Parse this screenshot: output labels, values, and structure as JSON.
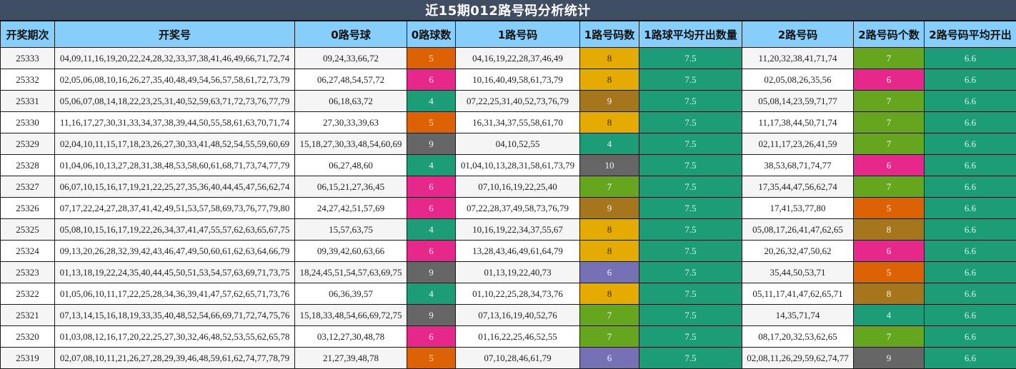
{
  "title": "近15期012路号码分析统计",
  "columns": [
    "开奖期次",
    "开奖号",
    "0路号球",
    "0路球数",
    "1路号码",
    "1路号码数",
    "1路球平均开出数量",
    "2路号码",
    "2路号码个数",
    "2路号码平均开出"
  ],
  "colors": {
    "title_bg": "#3f4e63",
    "header_bg": "#87cefa",
    "count_4": "#1c9c77",
    "count_5": "#dc6205",
    "count_6": "#e5288a",
    "count_6_purple": "#7670b5",
    "count_7": "#66a61f",
    "count_8_gold": "#e5ab02",
    "count_8_brown": "#a6761d",
    "count_9_gray": "#666666",
    "count_9_brown": "#a6761d",
    "count_10": "#666666",
    "avg": "#1c9c77"
  },
  "rows": [
    {
      "period": "25333",
      "numbers": "04,09,11,16,19,20,22,24,28,32,33,37,38,41,46,49,66,71,72,74",
      "r0": "09,24,33,66,72",
      "r0_count": "5",
      "r0_color": "#dc6205",
      "r1": "04,16,19,22,28,37,46,49",
      "r1_count": "8",
      "r1_color": "#e5ab02",
      "r1_dark": true,
      "r1_avg": "7.5",
      "r2": "11,20,32,38,41,71,74",
      "r2_count": "7",
      "r2_color": "#66a61f",
      "r2_avg": "6.6"
    },
    {
      "period": "25332",
      "numbers": "02,05,06,08,10,16,26,27,35,40,48,49,54,56,57,58,61,72,73,79",
      "r0": "06,27,48,54,57,72",
      "r0_count": "6",
      "r0_color": "#e5288a",
      "r1": "10,16,40,49,58,61,73,79",
      "r1_count": "8",
      "r1_color": "#e5ab02",
      "r1_dark": true,
      "r1_avg": "7.5",
      "r2": "02,05,08,26,35,56",
      "r2_count": "6",
      "r2_color": "#e5288a",
      "r2_avg": "6.6"
    },
    {
      "period": "25331",
      "numbers": "05,06,07,08,14,18,22,23,25,31,40,52,59,63,71,72,73,76,77,79",
      "r0": "06,18,63,72",
      "r0_count": "4",
      "r0_color": "#1c9c77",
      "r1": "07,22,25,31,40,52,73,76,79",
      "r1_count": "9",
      "r1_color": "#a6761d",
      "r1_dark": false,
      "r1_avg": "7.5",
      "r2": "05,08,14,23,59,71,77",
      "r2_count": "7",
      "r2_color": "#66a61f",
      "r2_avg": "6.6"
    },
    {
      "period": "25330",
      "numbers": "11,16,17,27,30,31,33,34,37,38,39,44,50,55,58,61,63,70,71,74",
      "r0": "27,30,33,39,63",
      "r0_count": "5",
      "r0_color": "#dc6205",
      "r1": "16,31,34,37,55,58,61,70",
      "r1_count": "8",
      "r1_color": "#e5ab02",
      "r1_dark": true,
      "r1_avg": "7.5",
      "r2": "11,17,38,44,50,71,74",
      "r2_count": "7",
      "r2_color": "#66a61f",
      "r2_avg": "6.6"
    },
    {
      "period": "25329",
      "numbers": "02,04,10,11,15,17,18,23,26,27,30,33,41,48,52,54,55,59,60,69",
      "r0": "15,18,27,30,33,48,54,60,69",
      "r0_count": "9",
      "r0_color": "#666666",
      "r1": "04,10,52,55",
      "r1_count": "4",
      "r1_color": "#1c9c77",
      "r1_dark": false,
      "r1_avg": "7.5",
      "r2": "02,11,17,23,26,41,59",
      "r2_count": "7",
      "r2_color": "#66a61f",
      "r2_avg": "6.6"
    },
    {
      "period": "25328",
      "numbers": "01,04,06,10,13,27,28,31,38,48,53,58,60,61,68,71,73,74,77,79",
      "r0": "06,27,48,60",
      "r0_count": "4",
      "r0_color": "#1c9c77",
      "r1": "01,04,10,13,28,31,58,61,73,79",
      "r1_count": "10",
      "r1_color": "#666666",
      "r1_dark": false,
      "r1_avg": "7.5",
      "r2": "38,53,68,71,74,77",
      "r2_count": "6",
      "r2_color": "#e5288a",
      "r2_avg": "6.6"
    },
    {
      "period": "25327",
      "numbers": "06,07,10,15,16,17,19,21,22,25,27,35,36,40,44,45,47,56,62,74",
      "r0": "06,15,21,27,36,45",
      "r0_count": "6",
      "r0_color": "#e5288a",
      "r1": "07,10,16,19,22,25,40",
      "r1_count": "7",
      "r1_color": "#66a61f",
      "r1_dark": false,
      "r1_avg": "7.5",
      "r2": "17,35,44,47,56,62,74",
      "r2_count": "7",
      "r2_color": "#66a61f",
      "r2_avg": "6.6"
    },
    {
      "period": "25326",
      "numbers": "07,17,22,24,27,28,37,41,42,49,51,53,57,58,69,73,76,77,79,80",
      "r0": "24,27,42,51,57,69",
      "r0_count": "6",
      "r0_color": "#e5288a",
      "r1": "07,22,28,37,49,58,73,76,79",
      "r1_count": "9",
      "r1_color": "#a6761d",
      "r1_dark": false,
      "r1_avg": "7.5",
      "r2": "17,41,53,77,80",
      "r2_count": "5",
      "r2_color": "#dc6205",
      "r2_avg": "6.6"
    },
    {
      "period": "25325",
      "numbers": "05,08,10,15,16,17,19,22,26,34,37,41,47,55,57,62,63,65,67,75",
      "r0": "15,57,63,75",
      "r0_count": "4",
      "r0_color": "#1c9c77",
      "r1": "10,16,19,22,34,37,55,67",
      "r1_count": "8",
      "r1_color": "#e5ab02",
      "r1_dark": true,
      "r1_avg": "7.5",
      "r2": "05,08,17,26,41,47,62,65",
      "r2_count": "8",
      "r2_color": "#a6761d",
      "r2_avg": "6.6"
    },
    {
      "period": "25324",
      "numbers": "09,13,20,26,28,32,39,42,43,46,47,49,50,60,61,62,63,64,66,79",
      "r0": "09,39,42,60,63,66",
      "r0_count": "6",
      "r0_color": "#e5288a",
      "r1": "13,28,43,46,49,61,64,79",
      "r1_count": "8",
      "r1_color": "#e5ab02",
      "r1_dark": true,
      "r1_avg": "7.5",
      "r2": "20,26,32,47,50,62",
      "r2_count": "6",
      "r2_color": "#e5288a",
      "r2_avg": "6.6"
    },
    {
      "period": "25323",
      "numbers": "01,13,18,19,22,24,35,40,44,45,50,51,53,54,57,63,69,71,73,75",
      "r0": "18,24,45,51,54,57,63,69,75",
      "r0_count": "9",
      "r0_color": "#666666",
      "r1": "01,13,19,22,40,73",
      "r1_count": "6",
      "r1_color": "#7670b5",
      "r1_dark": false,
      "r1_avg": "7.5",
      "r2": "35,44,50,53,71",
      "r2_count": "5",
      "r2_color": "#dc6205",
      "r2_avg": "6.6"
    },
    {
      "period": "25322",
      "numbers": "01,05,06,10,11,17,22,25,28,34,36,39,41,47,57,62,65,71,73,76",
      "r0": "06,36,39,57",
      "r0_count": "4",
      "r0_color": "#1c9c77",
      "r1": "01,10,22,25,28,34,73,76",
      "r1_count": "8",
      "r1_color": "#e5ab02",
      "r1_dark": true,
      "r1_avg": "7.5",
      "r2": "05,11,17,41,47,62,65,71",
      "r2_count": "8",
      "r2_color": "#a6761d",
      "r2_avg": "6.6"
    },
    {
      "period": "25321",
      "numbers": "07,13,14,15,16,18,19,33,35,40,48,52,54,66,69,71,72,74,75,76",
      "r0": "15,18,33,48,54,66,69,72,75",
      "r0_count": "9",
      "r0_color": "#666666",
      "r1": "07,13,16,19,40,52,76",
      "r1_count": "7",
      "r1_color": "#66a61f",
      "r1_dark": false,
      "r1_avg": "7.5",
      "r2": "14,35,71,74",
      "r2_count": "4",
      "r2_color": "#1c9c77",
      "r2_avg": "6.6"
    },
    {
      "period": "25320",
      "numbers": "01,03,08,12,16,17,20,22,25,27,30,32,46,48,52,53,55,62,65,78",
      "r0": "03,12,27,30,48,78",
      "r0_count": "6",
      "r0_color": "#e5288a",
      "r1": "01,16,22,25,46,52,55",
      "r1_count": "7",
      "r1_color": "#66a61f",
      "r1_dark": false,
      "r1_avg": "7.5",
      "r2": "08,17,20,32,53,62,65",
      "r2_count": "7",
      "r2_color": "#66a61f",
      "r2_avg": "6.6"
    },
    {
      "period": "25319",
      "numbers": "02,07,08,10,11,21,26,27,28,29,39,46,48,59,61,62,74,77,78,79",
      "r0": "21,27,39,48,78",
      "r0_count": "5",
      "r0_color": "#dc6205",
      "r1": "07,10,28,46,61,79",
      "r1_count": "6",
      "r1_color": "#7670b5",
      "r1_dark": false,
      "r1_avg": "7.5",
      "r2": "02,08,11,26,29,59,62,74,77",
      "r2_count": "9",
      "r2_color": "#666666",
      "r2_avg": "6.6"
    }
  ]
}
